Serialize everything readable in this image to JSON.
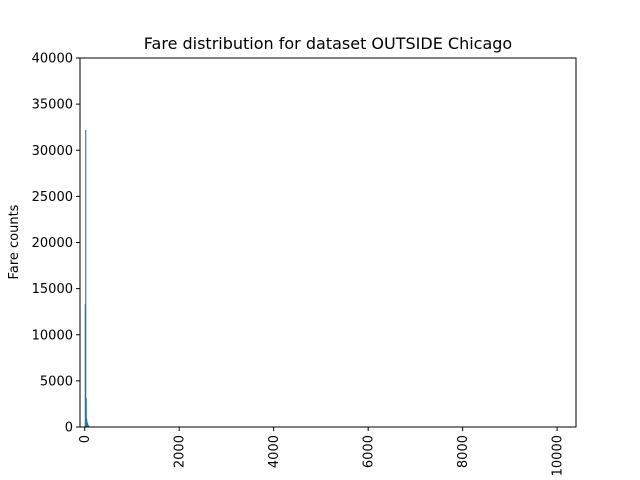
{
  "chart_data": {
    "type": "bar",
    "title": "Fare distribution for dataset OUTSIDE Chicago",
    "xlabel": "",
    "ylabel": "Fare counts",
    "xlim": [
      -100,
      10400
    ],
    "ylim": [
      0,
      40000
    ],
    "grid": false,
    "x_ticks": [
      0,
      2000,
      4000,
      6000,
      8000,
      10000
    ],
    "y_ticks": [
      0,
      5000,
      10000,
      15000,
      20000,
      25000,
      30000,
      35000,
      40000
    ],
    "bar_color": "#1f77b4",
    "bin_width": 10,
    "bins": [
      {
        "x": 0,
        "count": 13300
      },
      {
        "x": 10,
        "count": 32200
      },
      {
        "x": 20,
        "count": 3100
      },
      {
        "x": 30,
        "count": 900
      },
      {
        "x": 40,
        "count": 600
      },
      {
        "x": 50,
        "count": 400
      },
      {
        "x": 60,
        "count": 250
      },
      {
        "x": 70,
        "count": 150
      },
      {
        "x": 80,
        "count": 80
      }
    ]
  }
}
